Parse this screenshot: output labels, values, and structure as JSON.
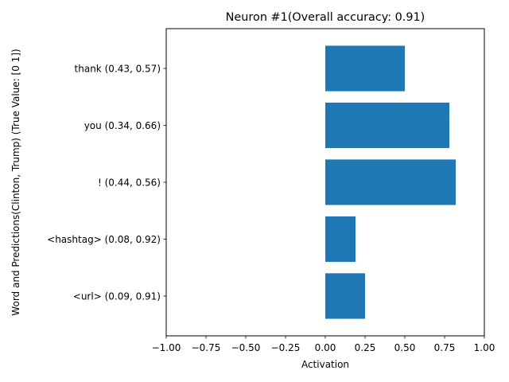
{
  "chart_data": {
    "type": "bar",
    "orientation": "horizontal",
    "title": "Neuron #1(Overall accuracy: 0.91)",
    "xlabel": "Activation",
    "ylabel": "Word and Predictions(Clinton, Trump) (True Value: [0 1])",
    "xlim": [
      -1.0,
      1.0
    ],
    "xticks": [
      -1.0,
      -0.75,
      -0.5,
      -0.25,
      0.0,
      0.25,
      0.5,
      0.75,
      1.0
    ],
    "xtick_labels": [
      "−1.00",
      "−0.75",
      "−0.50",
      "−0.25",
      "0.00",
      "0.25",
      "0.50",
      "0.75",
      "1.00"
    ],
    "categories": [
      "<url> (0.09, 0.91)",
      "<hashtag> (0.08, 0.92)",
      "! (0.44, 0.56)",
      "you (0.34, 0.66)",
      "thank (0.43, 0.57)"
    ],
    "values": [
      0.25,
      0.19,
      0.82,
      0.78,
      0.5
    ],
    "bar_color": "#1f77b4",
    "grid": false,
    "legend": "none"
  }
}
